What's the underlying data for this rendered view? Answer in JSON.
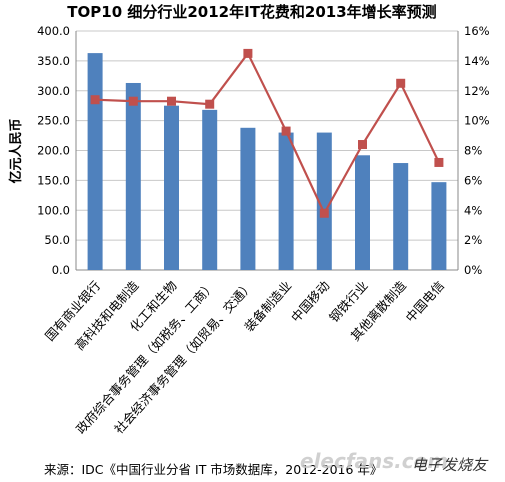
{
  "chart_data": {
    "type": "bar",
    "title": "TOP10 细分行业2012年IT花费和2013年增长率预测",
    "ylabel": "亿元人民币",
    "y2label": "",
    "categories": [
      "国有商业银行",
      "高科技和电制造",
      "化工和生物",
      "政府综合事务管理（如税务、工商）",
      "社会经济事务管理（如贸易、交通）",
      "装备制造业",
      "中国移动",
      "钢铁行业",
      "其他离散制造",
      "中国电信"
    ],
    "series": [
      {
        "values": [
          363,
          313,
          275,
          268,
          238,
          230,
          230,
          192,
          179,
          147
        ],
        "color": "#4f81bd",
        "kind": "bar",
        "axis": "left"
      },
      {
        "values": [
          11.4,
          11.3,
          11.3,
          11.1,
          14.5,
          9.3,
          3.8,
          8.4,
          12.5,
          7.2
        ],
        "color": "#c0504d",
        "kind": "line",
        "axis": "right"
      }
    ],
    "ylim": [
      0,
      400
    ],
    "y_ticks": [
      "0.0",
      "50.0",
      "100.0",
      "150.0",
      "200.0",
      "250.0",
      "300.0",
      "350.0",
      "400.0"
    ],
    "y2lim": [
      0,
      16
    ],
    "y2_ticks": [
      "0%",
      "2%",
      "4%",
      "6%",
      "8%",
      "10%",
      "12%",
      "14%",
      "16%"
    ],
    "grid": true,
    "legend": "none"
  },
  "source": "来源：IDC《中国行业分省 IT 市场数据库，2012-2016 年》",
  "watermark": {
    "site": "elecfans.com",
    "brand": "电子发烧友"
  }
}
